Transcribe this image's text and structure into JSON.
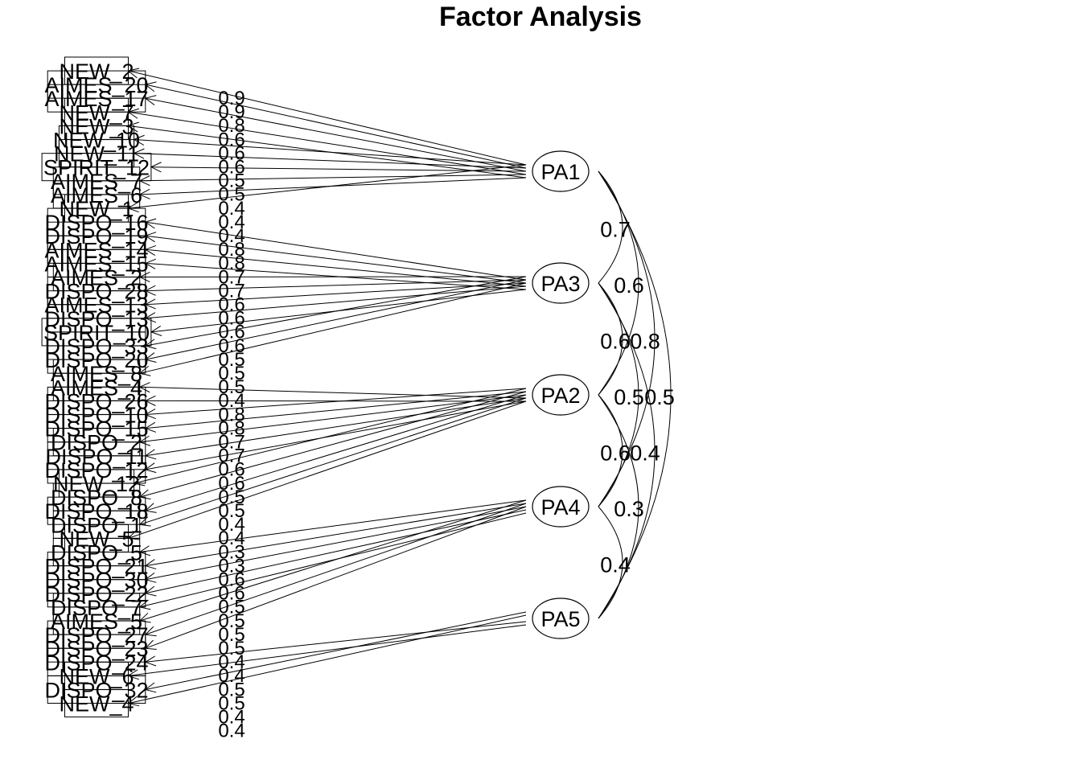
{
  "title": "Factor Analysis",
  "factors": [
    "PA1",
    "PA3",
    "PA2",
    "PA4",
    "PA5"
  ],
  "variables": [
    {
      "name": "NEW_2",
      "factor": "PA1",
      "loading": "0.9"
    },
    {
      "name": "AIMES_20",
      "factor": "PA1",
      "loading": "0.9"
    },
    {
      "name": "AIMES_17",
      "factor": "PA1",
      "loading": "0.8"
    },
    {
      "name": "NEW_7",
      "factor": "PA1",
      "loading": "0.6"
    },
    {
      "name": "NEW_3",
      "factor": "PA1",
      "loading": "0.6"
    },
    {
      "name": "NEW_10",
      "factor": "PA1",
      "loading": "0.6"
    },
    {
      "name": "NEW_11",
      "factor": "PA1",
      "loading": "0.5"
    },
    {
      "name": "SPIRIT_12",
      "factor": "PA1",
      "loading": "0.5"
    },
    {
      "name": "AIMES_7",
      "factor": "PA1",
      "loading": "0.4"
    },
    {
      "name": "AIMES_6",
      "factor": "PA1",
      "loading": "0.4"
    },
    {
      "name": "NEW_1",
      "factor": "PA1",
      "loading": "0.4"
    },
    {
      "name": "DISPO_16",
      "factor": "PA3",
      "loading": "0.8"
    },
    {
      "name": "DISPO_19",
      "factor": "PA3",
      "loading": "0.8"
    },
    {
      "name": "AIMES_14",
      "factor": "PA3",
      "loading": "0.7"
    },
    {
      "name": "AIMES_15",
      "factor": "PA3",
      "loading": "0.7"
    },
    {
      "name": "AIMES_2",
      "factor": "PA3",
      "loading": "0.6"
    },
    {
      "name": "DISPO_28",
      "factor": "PA3",
      "loading": "0.6"
    },
    {
      "name": "AIMES_13",
      "factor": "PA3",
      "loading": "0.6"
    },
    {
      "name": "DISPO_13",
      "factor": "PA3",
      "loading": "0.6"
    },
    {
      "name": "SPIRIT_10",
      "factor": "PA3",
      "loading": "0.5"
    },
    {
      "name": "DISPO_33",
      "factor": "PA3",
      "loading": "0.5"
    },
    {
      "name": "DISPO_20",
      "factor": "PA3",
      "loading": "0.5"
    },
    {
      "name": "AIMES_8",
      "factor": "PA3",
      "loading": "0.4"
    },
    {
      "name": "AIMES_4",
      "factor": "PA2",
      "loading": "0.8"
    },
    {
      "name": "DISPO_26",
      "factor": "PA2",
      "loading": "0.8"
    },
    {
      "name": "DISPO_10",
      "factor": "PA2",
      "loading": "0.7"
    },
    {
      "name": "DISPO_15",
      "factor": "PA2",
      "loading": "0.7"
    },
    {
      "name": "DISPO_2",
      "factor": "PA2",
      "loading": "0.6"
    },
    {
      "name": "DISPO_11",
      "factor": "PA2",
      "loading": "0.6"
    },
    {
      "name": "DISPO_12",
      "factor": "PA2",
      "loading": "0.5"
    },
    {
      "name": "NEW_12",
      "factor": "PA2",
      "loading": "0.5"
    },
    {
      "name": "DISPO_8",
      "factor": "PA2",
      "loading": "0.4"
    },
    {
      "name": "DISPO_18",
      "factor": "PA2",
      "loading": "0.4"
    },
    {
      "name": "DISPO_1",
      "factor": "PA2",
      "loading": "0.3"
    },
    {
      "name": "NEW_5",
      "factor": "PA2",
      "loading": "0.3"
    },
    {
      "name": "DISPO_5",
      "factor": "PA4",
      "loading": "0.6"
    },
    {
      "name": "DISPO_21",
      "factor": "PA4",
      "loading": "0.6"
    },
    {
      "name": "DISPO_30",
      "factor": "PA4",
      "loading": "0.5"
    },
    {
      "name": "DISPO_22",
      "factor": "PA4",
      "loading": "0.5"
    },
    {
      "name": "DISPO_7",
      "factor": "PA4",
      "loading": "0.5"
    },
    {
      "name": "AIMES_5",
      "factor": "PA4",
      "loading": "0.5"
    },
    {
      "name": "DISPO_27",
      "factor": "PA4",
      "loading": "0.4"
    },
    {
      "name": "DISPO_23",
      "factor": "PA4",
      "loading": "0.4"
    },
    {
      "name": "DISPO_24",
      "factor": "PA5",
      "loading": "0.5"
    },
    {
      "name": "NEW_6",
      "factor": "PA5",
      "loading": "0.5"
    },
    {
      "name": "DISPO_32",
      "factor": "PA5",
      "loading": "0.4"
    },
    {
      "name": "NEW_4",
      "factor": "PA5",
      "loading": "0.4"
    }
  ],
  "correlations": [
    {
      "from": "PA1",
      "to": "PA3",
      "value": "0.7"
    },
    {
      "from": "PA1",
      "to": "PA2",
      "value": "0.6"
    },
    {
      "from": "PA3",
      "to": "PA2",
      "value": "0.6"
    },
    {
      "from": "PA1",
      "to": "PA4",
      "value": "0.8"
    },
    {
      "from": "PA3",
      "to": "PA4",
      "value": "0.5"
    },
    {
      "from": "PA1",
      "to": "PA5",
      "value": "0.5"
    },
    {
      "from": "PA2",
      "to": "PA4",
      "value": "0.6"
    },
    {
      "from": "PA3",
      "to": "PA5",
      "value": "0.4"
    },
    {
      "from": "PA2",
      "to": "PA5",
      "value": "0.3"
    },
    {
      "from": "PA4",
      "to": "PA5",
      "value": "0.4"
    }
  ],
  "colors": {
    "ink": "#000000",
    "background": "#ffffff"
  }
}
